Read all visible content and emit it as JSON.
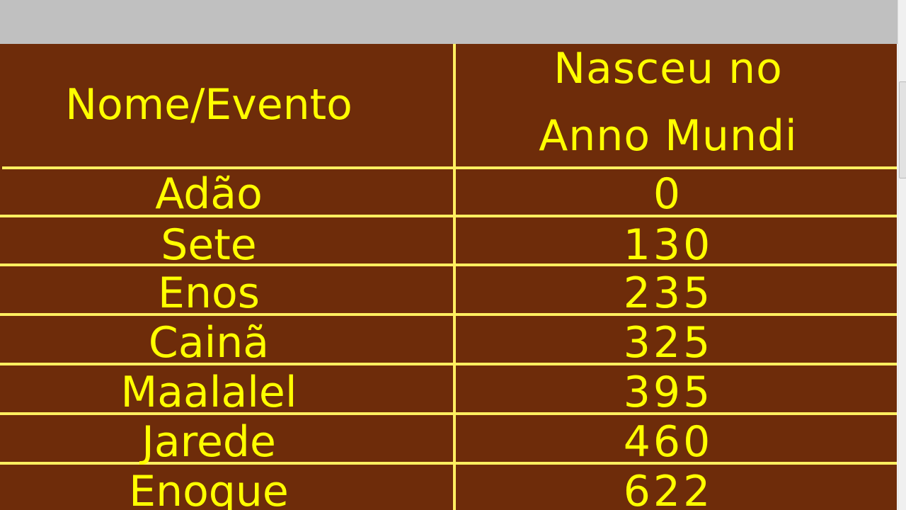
{
  "table": {
    "headers": [
      "Nome/Evento",
      "Nasceu no",
      "Anno Mundi"
    ],
    "rows": [
      {
        "name": "Adão",
        "year": "0"
      },
      {
        "name": "Sete",
        "year": "130"
      },
      {
        "name": "Enos",
        "year": "235"
      },
      {
        "name": "Cainã",
        "year": "325"
      },
      {
        "name": "Maalalel",
        "year": "395"
      },
      {
        "name": "Jarede",
        "year": "460"
      },
      {
        "name": "Enoque",
        "year": "622"
      }
    ]
  },
  "colors": {
    "background": "#6e2c0a",
    "text": "#ffff00",
    "lines": "#ffef60"
  }
}
